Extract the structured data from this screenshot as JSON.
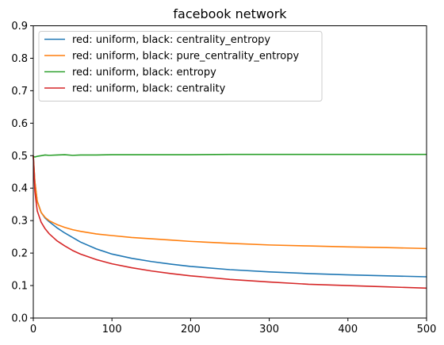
{
  "chart_data": {
    "type": "line",
    "title": "facebook network",
    "xlabel": "",
    "ylabel": "",
    "xlim": [
      0,
      500
    ],
    "ylim": [
      0,
      0.9
    ],
    "xticks": [
      0,
      100,
      200,
      300,
      400,
      500
    ],
    "yticks": [
      0.0,
      0.1,
      0.2,
      0.3,
      0.4,
      0.5,
      0.6,
      0.7,
      0.8,
      0.9
    ],
    "grid": false,
    "legend_position": "top-left",
    "series": [
      {
        "name": "red: uniform, black: centrality_entropy",
        "color": "#1f77b4",
        "x": [
          0,
          2,
          5,
          10,
          15,
          20,
          30,
          40,
          50,
          60,
          80,
          100,
          125,
          150,
          175,
          200,
          250,
          300,
          350,
          400,
          450,
          500
        ],
        "values": [
          0.5,
          0.42,
          0.36,
          0.325,
          0.308,
          0.297,
          0.278,
          0.262,
          0.248,
          0.234,
          0.213,
          0.197,
          0.184,
          0.174,
          0.166,
          0.159,
          0.149,
          0.142,
          0.137,
          0.133,
          0.13,
          0.127
        ]
      },
      {
        "name": "red: uniform, black: pure_centrality_entropy",
        "color": "#ff7f0e",
        "x": [
          0,
          2,
          5,
          10,
          15,
          20,
          30,
          40,
          50,
          60,
          80,
          100,
          125,
          150,
          175,
          200,
          250,
          300,
          350,
          400,
          450,
          500
        ],
        "values": [
          0.5,
          0.42,
          0.36,
          0.325,
          0.31,
          0.3,
          0.288,
          0.279,
          0.272,
          0.267,
          0.259,
          0.254,
          0.248,
          0.244,
          0.24,
          0.236,
          0.23,
          0.225,
          0.222,
          0.219,
          0.217,
          0.214
        ]
      },
      {
        "name": "red: uniform, black: entropy",
        "color": "#2ca02c",
        "x": [
          0,
          2,
          5,
          10,
          15,
          20,
          30,
          40,
          50,
          60,
          80,
          100,
          125,
          150,
          175,
          200,
          250,
          300,
          350,
          400,
          450,
          500
        ],
        "values": [
          0.497,
          0.496,
          0.498,
          0.5,
          0.502,
          0.501,
          0.502,
          0.503,
          0.501,
          0.502,
          0.502,
          0.503,
          0.503,
          0.503,
          0.503,
          0.503,
          0.504,
          0.504,
          0.504,
          0.504,
          0.504,
          0.504
        ]
      },
      {
        "name": "red: uniform, black: centrality",
        "color": "#d62728",
        "x": [
          0,
          2,
          5,
          10,
          15,
          20,
          30,
          40,
          50,
          60,
          80,
          100,
          125,
          150,
          175,
          200,
          250,
          300,
          350,
          400,
          450,
          500
        ],
        "values": [
          0.5,
          0.39,
          0.33,
          0.295,
          0.275,
          0.26,
          0.238,
          0.222,
          0.208,
          0.197,
          0.18,
          0.167,
          0.155,
          0.145,
          0.137,
          0.13,
          0.119,
          0.111,
          0.104,
          0.1,
          0.096,
          0.092
        ]
      }
    ]
  }
}
